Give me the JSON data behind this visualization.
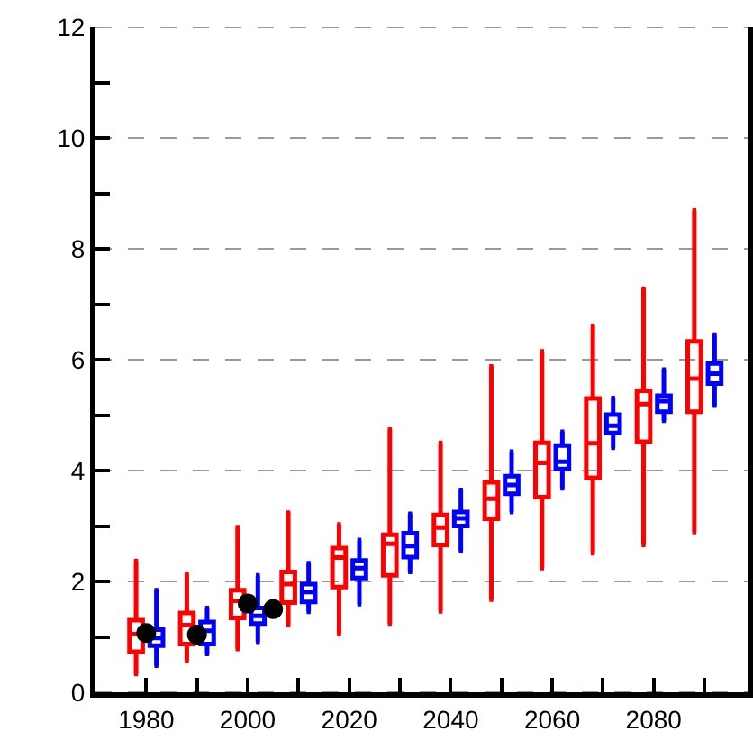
{
  "chart_data": {
    "type": "box",
    "xlim": [
      1970,
      2098.5
    ],
    "ylim": [
      0,
      12
    ],
    "xticks": [
      1980,
      {
        "value": 1990,
        "label": null
      },
      2000,
      {
        "value": 2010,
        "label": null
      },
      2020,
      {
        "value": 2030,
        "label": null
      },
      2040,
      {
        "value": 2050,
        "label": null
      },
      2060,
      {
        "value": 2070,
        "label": null
      },
      2080,
      {
        "value": 2090,
        "label": null
      }
    ],
    "yticks": [
      0,
      {
        "value": 1,
        "label": null
      },
      2,
      {
        "value": 3,
        "label": null
      },
      4,
      {
        "value": 5,
        "label": null
      },
      6,
      {
        "value": 7,
        "label": null
      },
      8,
      {
        "value": 9,
        "label": null
      },
      10,
      {
        "value": 11,
        "label": null
      },
      12
    ],
    "grid": "y",
    "series": [
      {
        "color": "#ff0000",
        "x": [
          1978,
          1988,
          1998,
          2008,
          2018,
          2028,
          2038,
          2048,
          2058,
          2068,
          2078,
          2088
        ],
        "boxes": [
          {
            "low": 0.33,
            "q1": 0.73,
            "median": 1.05,
            "q3": 1.3,
            "high": 2.37
          },
          {
            "low": 0.56,
            "q1": 0.87,
            "median": 1.21,
            "q3": 1.43,
            "high": 2.14
          },
          {
            "low": 0.78,
            "q1": 1.34,
            "median": 1.65,
            "q3": 1.84,
            "high": 2.98
          },
          {
            "low": 1.21,
            "q1": 1.62,
            "median": 1.95,
            "q3": 2.17,
            "high": 3.24
          },
          {
            "low": 1.05,
            "q1": 1.9,
            "median": 2.43,
            "q3": 2.6,
            "high": 3.03
          },
          {
            "low": 1.24,
            "q1": 2.11,
            "median": 2.68,
            "q3": 2.84,
            "high": 4.74
          },
          {
            "low": 1.46,
            "q1": 2.66,
            "median": 2.97,
            "q3": 3.2,
            "high": 4.5
          },
          {
            "low": 1.67,
            "q1": 3.13,
            "median": 3.49,
            "q3": 3.79,
            "high": 5.88
          },
          {
            "low": 2.24,
            "q1": 3.52,
            "median": 4.14,
            "q3": 4.5,
            "high": 6.15
          },
          {
            "low": 2.51,
            "q1": 3.87,
            "median": 4.49,
            "q3": 5.3,
            "high": 6.61
          },
          {
            "low": 2.66,
            "q1": 4.52,
            "median": 5.2,
            "q3": 5.44,
            "high": 7.28
          },
          {
            "low": 2.89,
            "q1": 5.06,
            "median": 5.66,
            "q3": 6.33,
            "high": 8.69
          }
        ]
      },
      {
        "color": "#0000ff",
        "x": [
          1982,
          1992,
          2002,
          2012,
          2022,
          2032,
          2042,
          2052,
          2062,
          2072,
          2082,
          2092
        ],
        "boxes": [
          {
            "low": 0.48,
            "q1": 0.84,
            "median": 0.98,
            "q3": 1.13,
            "high": 1.84
          },
          {
            "low": 0.69,
            "q1": 0.87,
            "median": 1.11,
            "q3": 1.27,
            "high": 1.52
          },
          {
            "low": 0.91,
            "q1": 1.24,
            "median": 1.38,
            "q3": 1.52,
            "high": 2.11
          },
          {
            "low": 1.45,
            "q1": 1.63,
            "median": 1.81,
            "q3": 1.95,
            "high": 2.33
          },
          {
            "low": 1.59,
            "q1": 2.06,
            "median": 2.24,
            "q3": 2.38,
            "high": 2.75
          },
          {
            "low": 2.17,
            "q1": 2.44,
            "median": 2.64,
            "q3": 2.87,
            "high": 3.22
          },
          {
            "low": 2.55,
            "q1": 3.0,
            "median": 3.14,
            "q3": 3.25,
            "high": 3.65
          },
          {
            "low": 3.25,
            "q1": 3.58,
            "median": 3.74,
            "q3": 3.9,
            "high": 4.34
          },
          {
            "low": 3.68,
            "q1": 4.03,
            "median": 4.16,
            "q3": 4.45,
            "high": 4.7
          },
          {
            "low": 4.41,
            "q1": 4.68,
            "median": 4.81,
            "q3": 5.01,
            "high": 5.31
          },
          {
            "low": 4.9,
            "q1": 5.06,
            "median": 5.25,
            "q3": 5.35,
            "high": 5.82
          },
          {
            "low": 5.17,
            "q1": 5.57,
            "median": 5.75,
            "q3": 5.93,
            "high": 6.45
          }
        ]
      },
      {
        "type": "scatter",
        "color": "#000000",
        "marker": "circle",
        "x": [
          1980,
          1990,
          2000,
          2005
        ],
        "values": [
          1.07,
          1.04,
          1.6,
          1.5
        ]
      }
    ]
  }
}
